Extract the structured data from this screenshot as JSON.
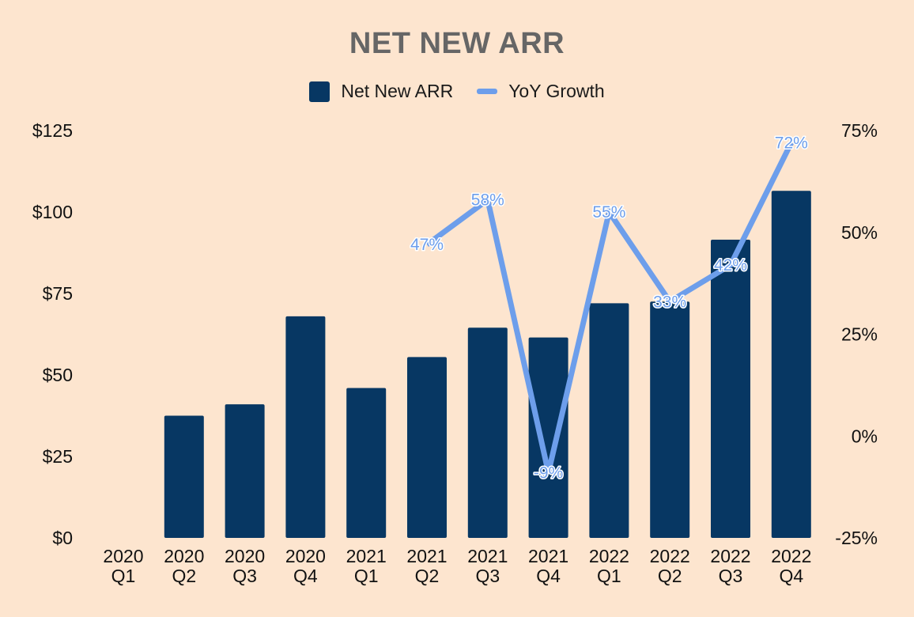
{
  "chart_data": {
    "type": "bar",
    "title": "NET NEW ARR",
    "categories": [
      [
        "2020",
        "Q1"
      ],
      [
        "2020",
        "Q2"
      ],
      [
        "2020",
        "Q3"
      ],
      [
        "2020",
        "Q4"
      ],
      [
        "2021",
        "Q1"
      ],
      [
        "2021",
        "Q2"
      ],
      [
        "2021",
        "Q3"
      ],
      [
        "2021",
        "Q4"
      ],
      [
        "2022",
        "Q1"
      ],
      [
        "2022",
        "Q2"
      ],
      [
        "2022",
        "Q3"
      ],
      [
        "2022",
        "Q4"
      ]
    ],
    "series": [
      {
        "name": "Net New ARR",
        "type": "bar",
        "axis": "left",
        "color": "#073763",
        "values": [
          null,
          37.5,
          41,
          68,
          46,
          55.5,
          64.5,
          61.5,
          72,
          72.5,
          91.5,
          106.5
        ]
      },
      {
        "name": "YoY Growth",
        "type": "line",
        "axis": "right",
        "color": "#6d9eeb",
        "values": [
          null,
          null,
          null,
          null,
          null,
          47,
          58,
          -9,
          55,
          33,
          42,
          72
        ],
        "labels": [
          "",
          "",
          "",
          "",
          "",
          "47%",
          "58%",
          "-9%",
          "55%",
          "33%",
          "42%",
          "72%"
        ]
      }
    ],
    "left_axis": {
      "range": [
        0,
        125
      ],
      "ticks": [
        0,
        25,
        50,
        75,
        100,
        125
      ],
      "tick_labels": [
        "$0",
        "$25",
        "$50",
        "$75",
        "$100",
        "$125"
      ]
    },
    "right_axis": {
      "range": [
        -25,
        75
      ],
      "ticks": [
        -25,
        0,
        25,
        50,
        75
      ],
      "tick_labels": [
        "-25%",
        "0%",
        "25%",
        "50%",
        "75%"
      ]
    },
    "legend_position": "top",
    "grid": false,
    "background": "#fde5cf",
    "title_color": "#666666"
  }
}
